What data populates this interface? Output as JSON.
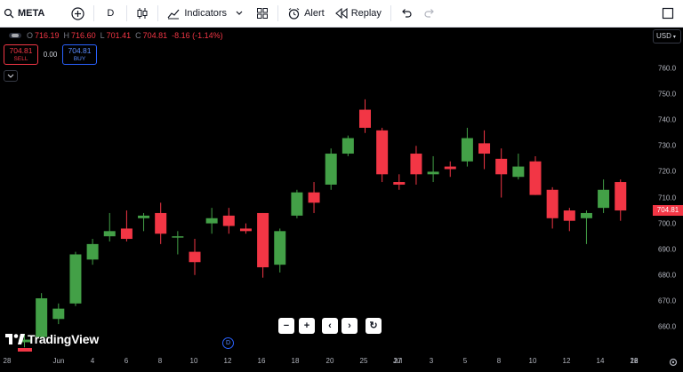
{
  "toolbar": {
    "symbol": "META",
    "interval": "D",
    "indicators_label": "Indicators",
    "alert_label": "Alert",
    "replay_label": "Replay"
  },
  "legend": {
    "o_label": "O",
    "o_value": "716.19",
    "h_label": "H",
    "h_value": "716.60",
    "l_label": "L",
    "l_value": "701.41",
    "c_label": "C",
    "c_value": "704.81",
    "change": "-8.16 (-1.14%)"
  },
  "trade": {
    "sell_price": "704.81",
    "sell_label": "SELL",
    "spread": "0.00",
    "buy_price": "704.81",
    "buy_label": "BUY"
  },
  "currency": "USD",
  "last_price_tag": "704.81",
  "dividend_marker": "D",
  "brand": "TradingView",
  "colors": {
    "up": "#43a047",
    "down": "#f23645",
    "background": "#000000",
    "accent": "#2962ff"
  },
  "icons": [
    "plus-circle-icon",
    "candles-icon",
    "indicators-icon",
    "layout-grid-icon",
    "alarm-clock-icon",
    "replay-icon",
    "undo-icon",
    "redo-icon",
    "fullscreen-icon",
    "chevron-down-icon",
    "gear-icon",
    "zoom-out-icon",
    "zoom-in-icon",
    "scroll-left-icon",
    "scroll-right-icon",
    "reset-icon"
  ],
  "chart_data": {
    "type": "candlestick",
    "y_ticks": [
      660,
      670,
      680,
      690,
      700,
      710,
      720,
      730,
      740,
      750,
      760
    ],
    "x_ticks": [
      "28",
      "Jun",
      "4",
      "6",
      "8",
      "10",
      "12",
      "16",
      "18",
      "20",
      "25",
      "27",
      "Jul",
      "3",
      "5",
      "8",
      "10",
      "12",
      "14",
      "16",
      "18",
      "22"
    ],
    "ylim": [
      655,
      768
    ],
    "candles": [
      {
        "o": 654,
        "h": 657,
        "l": 652,
        "c": 655
      },
      {
        "o": 656,
        "h": 673,
        "l": 656,
        "c": 671
      },
      {
        "o": 663,
        "h": 669,
        "l": 661,
        "c": 667
      },
      {
        "o": 669,
        "h": 689,
        "l": 668,
        "c": 688
      },
      {
        "o": 686,
        "h": 694,
        "l": 684,
        "c": 692
      },
      {
        "o": 695,
        "h": 704,
        "l": 693,
        "c": 697
      },
      {
        "o": 698,
        "h": 705,
        "l": 693,
        "c": 694
      },
      {
        "o": 702,
        "h": 704,
        "l": 697,
        "c": 703
      },
      {
        "o": 704,
        "h": 708,
        "l": 692,
        "c": 696
      },
      {
        "o": 695,
        "h": 697,
        "l": 688,
        "c": 695
      },
      {
        "o": 689,
        "h": 694,
        "l": 680,
        "c": 685
      },
      {
        "o": 700,
        "h": 706,
        "l": 696,
        "c": 702
      },
      {
        "o": 703,
        "h": 706,
        "l": 696,
        "c": 699
      },
      {
        "o": 698,
        "h": 700,
        "l": 696,
        "c": 697
      },
      {
        "o": 704,
        "h": 704,
        "l": 679,
        "c": 683
      },
      {
        "o": 684,
        "h": 698,
        "l": 681,
        "c": 697
      },
      {
        "o": 703,
        "h": 713,
        "l": 702,
        "c": 712
      },
      {
        "o": 712,
        "h": 716,
        "l": 704,
        "c": 708
      },
      {
        "o": 715,
        "h": 729,
        "l": 713,
        "c": 727
      },
      {
        "o": 727,
        "h": 734,
        "l": 726,
        "c": 733
      },
      {
        "o": 744,
        "h": 748,
        "l": 735,
        "c": 737
      },
      {
        "o": 736,
        "h": 737,
        "l": 716,
        "c": 719
      },
      {
        "o": 716,
        "h": 719,
        "l": 713,
        "c": 715
      },
      {
        "o": 727,
        "h": 730,
        "l": 715,
        "c": 719
      },
      {
        "o": 719,
        "h": 726,
        "l": 716,
        "c": 720
      },
      {
        "o": 722,
        "h": 724,
        "l": 718,
        "c": 721
      },
      {
        "o": 724,
        "h": 737,
        "l": 722,
        "c": 733
      },
      {
        "o": 731,
        "h": 736,
        "l": 721,
        "c": 727
      },
      {
        "o": 725,
        "h": 729,
        "l": 710,
        "c": 719
      },
      {
        "o": 718,
        "h": 727,
        "l": 717,
        "c": 722
      },
      {
        "o": 724,
        "h": 726,
        "l": 711,
        "c": 711
      },
      {
        "o": 713,
        "h": 714,
        "l": 698,
        "c": 702
      },
      {
        "o": 705,
        "h": 706,
        "l": 697,
        "c": 701
      },
      {
        "o": 702,
        "h": 705,
        "l": 692,
        "c": 704
      },
      {
        "o": 706,
        "h": 717,
        "l": 704,
        "c": 713
      },
      {
        "o": 716,
        "h": 717,
        "l": 701,
        "c": 705
      }
    ]
  }
}
